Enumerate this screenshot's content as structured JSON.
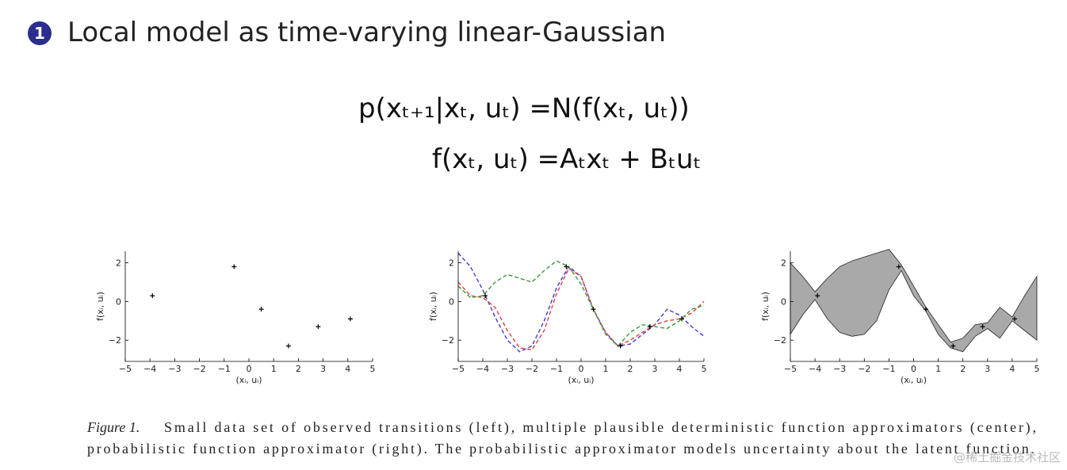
{
  "slide": {
    "bullet": "1",
    "title": "Local model as time-varying linear-Gaussian",
    "equations": [
      "p(xₜ₊₁|xₜ, uₜ) =N(f(xₜ, uₜ))",
      "f(xₜ, uₜ) =Aₜxₜ + Bₜuₜ"
    ],
    "caption": {
      "label": "Figure 1.",
      "lines": [
        "Small data set of observed transitions (left), multiple plausible deterministic function approximators (center),",
        "probabilistic function approximator (right). The probabilistic approximator models uncertainty about the latent function."
      ]
    },
    "watermark": "@稀土掘金技术社区"
  },
  "chart_data": [
    {
      "type": "scatter",
      "xlabel": "(xᵢ, uᵢ)",
      "ylabel": "f(xᵢ, uᵢ)",
      "x": [
        -3.9,
        -0.6,
        0.5,
        1.6,
        2.8,
        4.1
      ],
      "values": [
        0.3,
        1.8,
        -0.4,
        -2.3,
        -1.3,
        -0.9
      ],
      "color": "#000000",
      "xlim": [
        -5,
        5
      ],
      "ylim": [
        -3.1,
        2.6
      ],
      "xticks": [
        {
          "value": -5,
          "label": "−5"
        },
        {
          "value": -4,
          "label": "−4"
        },
        {
          "value": -3,
          "label": "−3"
        },
        {
          "value": -2,
          "label": "−2"
        },
        {
          "value": -1,
          "label": "−1"
        },
        0,
        1,
        2,
        3,
        4,
        5
      ],
      "yticks": [
        {
          "value": -2,
          "label": "−2"
        },
        0,
        2
      ]
    },
    {
      "type": "line",
      "xlabel": "(xᵢ, uᵢ)",
      "ylabel": "f(xᵢ, uᵢ)",
      "x": [
        -5,
        -4.5,
        -4,
        -3.5,
        -3,
        -2.5,
        -2,
        -1.5,
        -1,
        -0.5,
        0,
        0.5,
        1,
        1.5,
        2,
        2.5,
        3,
        3.5,
        4,
        4.5,
        5
      ],
      "series": [
        {
          "color": "#3c3cd8",
          "values": [
            2.5,
            1.8,
            0.6,
            -0.8,
            -2.0,
            -2.6,
            -2.3,
            -1.0,
            0.7,
            1.8,
            1.3,
            -0.4,
            -1.6,
            -2.3,
            -2.2,
            -1.7,
            -1.2,
            -0.4,
            -0.7,
            -1.3,
            -1.8
          ]
        },
        {
          "color": "#e04040",
          "values": [
            1.0,
            0.3,
            0.2,
            -0.3,
            -1.5,
            -2.4,
            -2.5,
            -1.5,
            0.4,
            1.7,
            1.3,
            -0.4,
            -1.6,
            -2.3,
            -2.0,
            -1.6,
            -1.2,
            -1.0,
            -0.9,
            -0.6,
            0.0
          ]
        },
        {
          "color": "#3a9a3a",
          "values": [
            0.8,
            0.2,
            0.3,
            1.0,
            1.4,
            1.2,
            1.0,
            1.6,
            2.1,
            1.8,
            0.9,
            -0.4,
            -1.7,
            -2.3,
            -1.6,
            -1.2,
            -1.3,
            -1.4,
            -1.0,
            -0.4,
            -0.2
          ]
        }
      ],
      "points": {
        "x": [
          -3.9,
          -0.6,
          0.5,
          1.6,
          2.8,
          4.1
        ],
        "y": [
          0.3,
          1.8,
          -0.4,
          -2.3,
          -1.3,
          -0.9
        ]
      },
      "xlim": [
        -5,
        5
      ],
      "ylim": [
        -3.1,
        2.6
      ],
      "xticks": [
        {
          "value": -5,
          "label": "−5"
        },
        {
          "value": -4,
          "label": "−4"
        },
        {
          "value": -3,
          "label": "−3"
        },
        {
          "value": -2,
          "label": "−2"
        },
        {
          "value": -1,
          "label": "−1"
        },
        0,
        1,
        2,
        3,
        4,
        5
      ],
      "yticks": [
        {
          "value": -2,
          "label": "−2"
        },
        0,
        2
      ]
    },
    {
      "type": "band",
      "xlabel": "(xᵢ, uᵢ)",
      "ylabel": "f(xᵢ, uᵢ)",
      "color": "#a9a9a9",
      "x": [
        -5,
        -4.5,
        -4,
        -3.5,
        -3,
        -2.5,
        -2,
        -1.5,
        -1,
        -0.5,
        0,
        0.5,
        1,
        1.5,
        2,
        2.5,
        3,
        3.5,
        4,
        4.5,
        5
      ],
      "upper": [
        2.0,
        1.3,
        0.5,
        1.2,
        1.8,
        2.1,
        2.3,
        2.5,
        2.7,
        1.9,
        0.8,
        -0.3,
        -1.2,
        -2.1,
        -1.9,
        -1.2,
        -1.1,
        -0.3,
        -0.8,
        0.3,
        1.3
      ],
      "lower": [
        -1.7,
        -0.7,
        0.1,
        -0.9,
        -1.6,
        -1.8,
        -1.7,
        -1.0,
        0.6,
        1.6,
        0.3,
        -0.5,
        -1.7,
        -2.4,
        -2.6,
        -1.8,
        -1.4,
        -1.9,
        -1.0,
        -1.5,
        -2.0
      ],
      "points": {
        "x": [
          -3.9,
          -0.6,
          0.5,
          1.6,
          2.8,
          4.1
        ],
        "y": [
          0.3,
          1.8,
          -0.4,
          -2.3,
          -1.3,
          -0.9
        ]
      },
      "xlim": [
        -5,
        5
      ],
      "ylim": [
        -3.1,
        2.6
      ],
      "xticks": [
        {
          "value": -5,
          "label": "−5"
        },
        {
          "value": -4,
          "label": "−4"
        },
        {
          "value": -3,
          "label": "−3"
        },
        {
          "value": -2,
          "label": "−2"
        },
        {
          "value": -1,
          "label": "−1"
        },
        0,
        1,
        2,
        3,
        4,
        5
      ],
      "yticks": [
        {
          "value": -2,
          "label": "−2"
        },
        0,
        2
      ]
    }
  ]
}
